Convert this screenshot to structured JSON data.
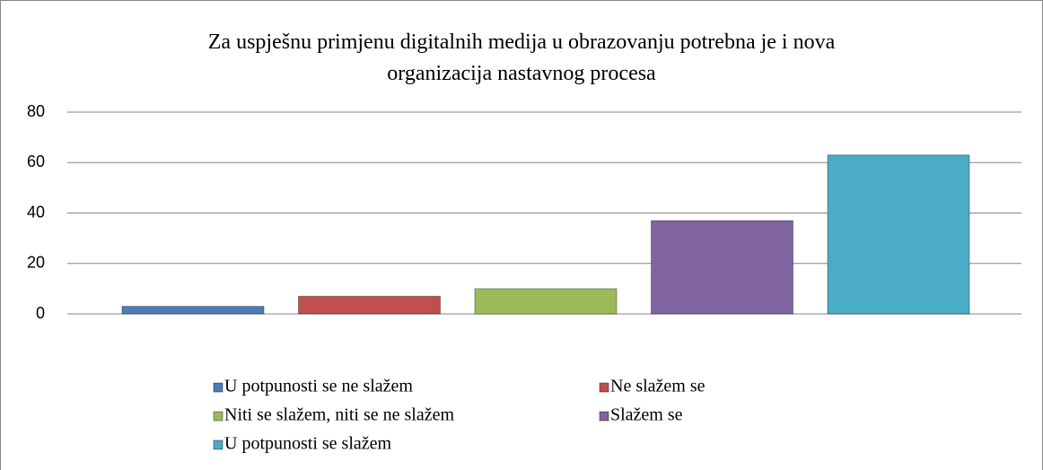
{
  "chart_data": {
    "type": "bar",
    "title": "Za uspješnu primjenu digitalnih medija u obrazovanju potrebna je i nova\norganizacija nastavnog procesa",
    "categories": [
      null
    ],
    "series": [
      {
        "name": "U potpunosti se ne slažem",
        "color": "#4a7ebb",
        "values": [
          3
        ]
      },
      {
        "name": "Ne slažem se",
        "color": "#c0504d",
        "values": [
          7
        ]
      },
      {
        "name": "Niti se slažem, niti se ne slažem",
        "color": "#9bbb59",
        "values": [
          10
        ]
      },
      {
        "name": "Slažem se",
        "color": "#8064a2",
        "values": [
          37
        ]
      },
      {
        "name": "U potpunosti se slažem",
        "color": "#4bacc6",
        "values": [
          63
        ]
      }
    ],
    "ylim": [
      0,
      80
    ],
    "yticks": [
      0,
      20,
      40,
      60,
      80
    ],
    "grid": true,
    "legend": "bottom"
  }
}
